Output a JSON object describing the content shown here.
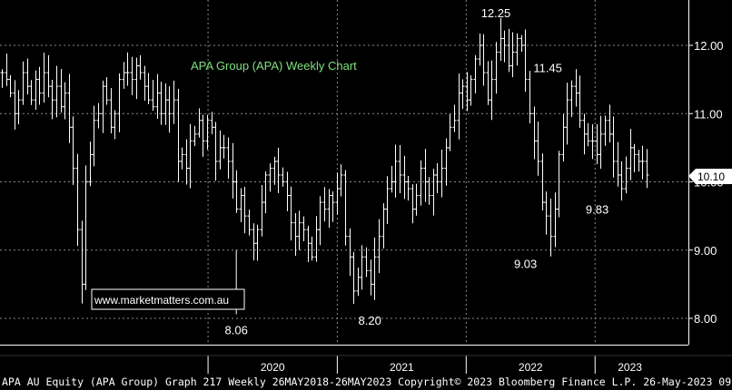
{
  "chart_data": {
    "type": "ohlc",
    "title": "APA Group (APA) Weekly Chart",
    "x_range": [
      "2018-05-26",
      "2023-05-26"
    ],
    "x_tick_labels": [
      "2020",
      "2021",
      "2022",
      "2023"
    ],
    "y_tick_labels": [
      "8.00",
      "9.00",
      "10.00",
      "11.00",
      "12.00"
    ],
    "ylim": [
      7.7,
      12.7
    ],
    "last_price": "10.10",
    "watermark": "www.marketmatters.com.au",
    "footer": "APA AU Equity (APA Group) Graph 217  Weekly 26MAY2018-26MAY2023 Copyright© 2023 Bloomberg Finance L.P. 26-May-2023 09:04:37",
    "annotations": [
      {
        "label": "8.06",
        "value": 8.06,
        "date": "2020-03-20"
      },
      {
        "label": "8.20",
        "value": 8.2,
        "date": "2021-04-02"
      },
      {
        "label": "12.25",
        "value": 12.25,
        "date": "2022-03-25"
      },
      {
        "label": "9.03",
        "value": 9.03,
        "date": "2022-06-17"
      },
      {
        "label": "11.45",
        "value": 11.45,
        "date": "2022-08-19"
      },
      {
        "label": "9.83",
        "value": 9.83,
        "date": "2023-01-06"
      }
    ],
    "weekly_closes": [
      11.6,
      11.5,
      11.3,
      11.0,
      11.2,
      11.6,
      11.4,
      11.2,
      11.5,
      11.3,
      11.6,
      11.4,
      11.2,
      11.4,
      11.1,
      11.3,
      10.8,
      10.2,
      9.3,
      8.5,
      10.0,
      10.4,
      10.9,
      11.0,
      11.4,
      11.2,
      10.8,
      11.0,
      11.5,
      11.6,
      11.6,
      11.5,
      11.7,
      11.6,
      11.4,
      11.2,
      11.1,
      11.3,
      11.0,
      11.2,
      11.0,
      11.2,
      10.3,
      10.4,
      10.2,
      10.6,
      10.7,
      10.9,
      10.6,
      10.9,
      10.8,
      10.3,
      10.5,
      10.5,
      10.3,
      10.0,
      9.6,
      9.8,
      9.5,
      9.3,
      9.1,
      9.3,
      9.7,
      10.1,
      10.2,
      10.3,
      10.1,
      10.0,
      9.8,
      9.4,
      9.2,
      9.4,
      9.3,
      9.1,
      8.9,
      9.3,
      9.7,
      9.6,
      9.8,
      9.7,
      9.9,
      10.1,
      9.2,
      8.9,
      8.4,
      8.6,
      8.9,
      8.7,
      8.5,
      8.9,
      9.2,
      9.6,
      9.9,
      10.0,
      10.3,
      10.1,
      10.0,
      9.9,
      9.6,
      9.8,
      10.2,
      10.0,
      9.8,
      10.1,
      10.0,
      10.2,
      10.5,
      10.8,
      10.9,
      11.3,
      11.4,
      11.2,
      11.5,
      11.8,
      12.0,
      11.6,
      11.2,
      11.5,
      11.9,
      12.1,
      12.0,
      11.7,
      11.9,
      12.1,
      12.0,
      11.5,
      11.0,
      10.6,
      10.3,
      9.7,
      9.5,
      9.2,
      9.6,
      10.4,
      10.8,
      11.2,
      11.4,
      11.3,
      10.9,
      10.7,
      10.6,
      10.6,
      10.4,
      10.7,
      10.9,
      10.7,
      10.3,
      10.1,
      9.9,
      10.2,
      10.5,
      10.4,
      10.3,
      10.3,
      10.1
    ]
  }
}
